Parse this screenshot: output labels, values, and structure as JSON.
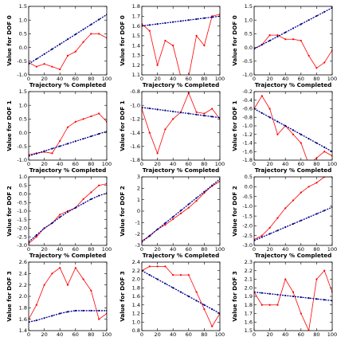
{
  "colors": {
    "series_red": "#ff0000",
    "series_blue": "#00008b",
    "axes": "#000000",
    "background": "#ffffff"
  },
  "chart_data": [
    {
      "type": "line",
      "xlabel": "Trajectory % Completed",
      "ylabel": "Value for DOF 0",
      "xlim": [
        0,
        100
      ],
      "ylim": [
        -1.0,
        1.5
      ],
      "xticks": [
        0,
        20,
        40,
        60,
        80,
        100
      ],
      "yticks": [
        -1.0,
        -0.5,
        0.0,
        0.5,
        1.0,
        1.5
      ],
      "grid": false,
      "series": [
        {
          "color": "#ff0000",
          "style": "solid",
          "markers": "dot",
          "x": [
            0,
            10,
            20,
            30,
            40,
            50,
            60,
            70,
            80,
            90,
            100
          ],
          "y": [
            -0.55,
            -0.7,
            -0.6,
            -0.7,
            -0.8,
            -0.3,
            -0.15,
            0.2,
            0.5,
            0.5,
            0.35
          ]
        },
        {
          "color": "#00008b",
          "style": "dashed",
          "markers": "dot",
          "x": [
            0,
            10,
            20,
            30,
            40,
            50,
            60,
            70,
            80,
            90,
            100
          ],
          "y": [
            -0.6,
            -0.42,
            -0.24,
            -0.06,
            0.12,
            0.3,
            0.48,
            0.66,
            0.84,
            1.02,
            1.2
          ]
        }
      ]
    },
    {
      "type": "line",
      "xlabel": "Trajectory % Completed",
      "ylabel": "Value for DOF 0",
      "xlim": [
        0,
        100
      ],
      "ylim": [
        1.1,
        1.8
      ],
      "xticks": [
        0,
        20,
        40,
        60,
        80,
        100
      ],
      "yticks": [
        1.1,
        1.2,
        1.3,
        1.4,
        1.5,
        1.6,
        1.7,
        1.8
      ],
      "grid": false,
      "series": [
        {
          "color": "#ff0000",
          "style": "solid",
          "markers": "dot",
          "x": [
            0,
            10,
            20,
            30,
            40,
            50,
            60,
            70,
            80,
            90,
            100
          ],
          "y": [
            1.62,
            1.55,
            1.2,
            1.45,
            1.4,
            1.08,
            1.08,
            1.5,
            1.4,
            1.7,
            1.72
          ]
        },
        {
          "color": "#00008b",
          "style": "dashed",
          "markers": "dot",
          "x": [
            0,
            10,
            20,
            30,
            40,
            50,
            60,
            70,
            80,
            90,
            100
          ],
          "y": [
            1.6,
            1.61,
            1.62,
            1.63,
            1.64,
            1.65,
            1.66,
            1.67,
            1.68,
            1.69,
            1.7
          ]
        }
      ]
    },
    {
      "type": "line",
      "xlabel": "Trajectory % Completed",
      "ylabel": "Value for DOF 0",
      "xlim": [
        0,
        100
      ],
      "ylim": [
        -1.0,
        1.5
      ],
      "xticks": [
        0,
        20,
        40,
        60,
        80,
        100
      ],
      "yticks": [
        -1.0,
        -0.5,
        0.0,
        0.5,
        1.0,
        1.5
      ],
      "grid": false,
      "series": [
        {
          "color": "#ff0000",
          "style": "solid",
          "markers": "dot",
          "x": [
            0,
            10,
            20,
            30,
            40,
            50,
            60,
            70,
            80,
            90,
            100
          ],
          "y": [
            -0.05,
            0.1,
            0.45,
            0.45,
            0.3,
            0.3,
            0.25,
            -0.3,
            -0.75,
            -0.55,
            -0.1
          ]
        },
        {
          "color": "#00008b",
          "style": "dashed",
          "markers": "dot",
          "x": [
            0,
            10,
            20,
            30,
            40,
            50,
            60,
            70,
            80,
            90,
            100
          ],
          "y": [
            -0.05,
            0.1,
            0.25,
            0.4,
            0.55,
            0.7,
            0.85,
            1.0,
            1.15,
            1.3,
            1.45
          ]
        }
      ]
    },
    {
      "type": "line",
      "xlabel": "Trajectory % Completed",
      "ylabel": "Value for DOF 1",
      "xlim": [
        0,
        100
      ],
      "ylim": [
        -1.0,
        1.5
      ],
      "xticks": [
        0,
        20,
        40,
        60,
        80,
        100
      ],
      "yticks": [
        -1.0,
        -0.5,
        0.0,
        0.5,
        1.0,
        1.5
      ],
      "grid": false,
      "series": [
        {
          "color": "#ff0000",
          "style": "solid",
          "markers": "dot",
          "x": [
            0,
            10,
            20,
            30,
            40,
            50,
            60,
            70,
            80,
            90,
            100
          ],
          "y": [
            -0.8,
            -0.75,
            -0.7,
            -0.75,
            -0.3,
            0.2,
            0.4,
            0.5,
            0.6,
            0.7,
            0.4
          ]
        },
        {
          "color": "#00008b",
          "style": "dashed",
          "markers": "dot",
          "x": [
            0,
            10,
            20,
            30,
            40,
            50,
            60,
            70,
            80,
            90,
            100
          ],
          "y": [
            -0.85,
            -0.76,
            -0.67,
            -0.58,
            -0.49,
            -0.4,
            -0.31,
            -0.22,
            -0.13,
            -0.04,
            0.05
          ]
        }
      ]
    },
    {
      "type": "line",
      "xlabel": "Trajectory % Completed",
      "ylabel": "Value for DOF 1",
      "xlim": [
        0,
        100
      ],
      "ylim": [
        -1.8,
        -0.8
      ],
      "xticks": [
        0,
        20,
        40,
        60,
        80,
        100
      ],
      "yticks": [
        -1.8,
        -1.6,
        -1.4,
        -1.2,
        -1.0,
        -0.8
      ],
      "grid": false,
      "series": [
        {
          "color": "#ff0000",
          "style": "solid",
          "markers": "dot",
          "x": [
            0,
            10,
            20,
            30,
            40,
            50,
            60,
            70,
            80,
            90,
            100
          ],
          "y": [
            -1.05,
            -1.4,
            -1.7,
            -1.35,
            -1.2,
            -1.1,
            -0.82,
            -1.1,
            -1.12,
            -1.05,
            -1.2
          ]
        },
        {
          "color": "#00008b",
          "style": "dashed",
          "markers": "dot",
          "x": [
            0,
            10,
            20,
            30,
            40,
            50,
            60,
            70,
            80,
            90,
            100
          ],
          "y": [
            -1.03,
            -1.045,
            -1.06,
            -1.075,
            -1.09,
            -1.105,
            -1.12,
            -1.135,
            -1.15,
            -1.165,
            -1.18
          ]
        }
      ]
    },
    {
      "type": "line",
      "xlabel": "Trajectory % Completed",
      "ylabel": "Value for DOF 1",
      "xlim": [
        0,
        100
      ],
      "ylim": [
        -1.8,
        -0.2
      ],
      "xticks": [
        0,
        20,
        40,
        60,
        80,
        100
      ],
      "yticks": [
        -1.8,
        -1.6,
        -1.4,
        -1.2,
        -1.0,
        -0.8,
        -0.6,
        -0.4,
        -0.2
      ],
      "grid": false,
      "series": [
        {
          "color": "#ff0000",
          "style": "solid",
          "markers": "dot",
          "x": [
            0,
            10,
            20,
            30,
            40,
            50,
            60,
            70,
            80,
            90,
            100
          ],
          "y": [
            -0.6,
            -0.3,
            -0.6,
            -1.2,
            -1.0,
            -1.2,
            -1.4,
            -1.9,
            -1.75,
            -1.6,
            -1.7
          ]
        },
        {
          "color": "#00008b",
          "style": "dashed",
          "markers": "dot",
          "x": [
            0,
            10,
            20,
            30,
            40,
            50,
            60,
            70,
            80,
            90,
            100
          ],
          "y": [
            -0.6,
            -0.7,
            -0.8,
            -0.9,
            -1.0,
            -1.1,
            -1.2,
            -1.3,
            -1.4,
            -1.5,
            -1.6
          ]
        }
      ]
    },
    {
      "type": "line",
      "xlabel": "Trajectory % Completed",
      "ylabel": "Value for DOF 2",
      "xlim": [
        0,
        100
      ],
      "ylim": [
        -3.0,
        1.0
      ],
      "xticks": [
        0,
        20,
        40,
        60,
        80,
        100
      ],
      "yticks": [
        -3.0,
        -2.5,
        -2.0,
        -1.5,
        -1.0,
        -0.5,
        0.0,
        0.5,
        1.0
      ],
      "grid": false,
      "series": [
        {
          "color": "#ff0000",
          "style": "solid",
          "markers": "dot",
          "x": [
            0,
            10,
            20,
            30,
            40,
            50,
            60,
            70,
            80,
            90,
            100
          ],
          "y": [
            -2.9,
            -2.5,
            -2.0,
            -1.7,
            -1.2,
            -1.0,
            -0.8,
            -0.3,
            0.1,
            0.5,
            0.6
          ]
        },
        {
          "color": "#00008b",
          "style": "dashed",
          "markers": "dot",
          "x": [
            0,
            10,
            20,
            30,
            40,
            50,
            60,
            70,
            80,
            90,
            100
          ],
          "y": [
            -2.8,
            -2.4,
            -2.0,
            -1.7,
            -1.35,
            -1.05,
            -0.8,
            -0.55,
            -0.3,
            -0.1,
            0.05
          ]
        }
      ]
    },
    {
      "type": "line",
      "xlabel": "Trajectory % Completed",
      "ylabel": "Value for DOF 2",
      "xlim": [
        0,
        100
      ],
      "ylim": [
        -3,
        3
      ],
      "xticks": [
        0,
        20,
        40,
        60,
        80,
        100
      ],
      "yticks": [
        -3,
        -2,
        -1,
        0,
        1,
        2,
        3
      ],
      "grid": false,
      "series": [
        {
          "color": "#ff0000",
          "style": "solid",
          "markers": "dot",
          "x": [
            0,
            10,
            20,
            30,
            40,
            50,
            60,
            70,
            80,
            90,
            100
          ],
          "y": [
            -2.6,
            -2.2,
            -1.6,
            -1.2,
            -0.7,
            -0.2,
            0.3,
            0.9,
            1.6,
            2.2,
            2.6
          ]
        },
        {
          "color": "#00008b",
          "style": "dashed",
          "markers": "dot",
          "x": [
            0,
            10,
            20,
            30,
            40,
            50,
            60,
            70,
            80,
            90,
            100
          ],
          "y": [
            -2.7,
            -2.15,
            -1.6,
            -1.05,
            -0.5,
            0.05,
            0.6,
            1.15,
            1.7,
            2.25,
            2.8
          ]
        }
      ]
    },
    {
      "type": "line",
      "xlabel": "Trajectory % Completed",
      "ylabel": "Value for DOF 2",
      "xlim": [
        0,
        100
      ],
      "ylim": [
        -3.0,
        0.5
      ],
      "xticks": [
        0,
        20,
        40,
        60,
        80,
        100
      ],
      "yticks": [
        -3.0,
        -2.5,
        -2.0,
        -1.5,
        -1.0,
        -0.5,
        0.0,
        0.5
      ],
      "grid": false,
      "series": [
        {
          "color": "#ff0000",
          "style": "solid",
          "markers": "dot",
          "x": [
            0,
            10,
            20,
            30,
            40,
            50,
            60,
            70,
            80,
            90,
            100
          ],
          "y": [
            -2.7,
            -2.5,
            -2.1,
            -1.6,
            -1.1,
            -0.7,
            -0.3,
            0.0,
            0.2,
            0.5,
            0.5
          ]
        },
        {
          "color": "#00008b",
          "style": "dashed",
          "markers": "dot",
          "x": [
            0,
            10,
            20,
            30,
            40,
            50,
            60,
            70,
            80,
            90,
            100
          ],
          "y": [
            -2.75,
            -2.58,
            -2.41,
            -2.24,
            -2.07,
            -1.9,
            -1.73,
            -1.56,
            -1.39,
            -1.22,
            -1.05
          ]
        }
      ]
    },
    {
      "type": "line",
      "xlabel": "Trajectory % Completed",
      "ylabel": "Value for DOF 3",
      "xlim": [
        0,
        100
      ],
      "ylim": [
        1.4,
        2.6
      ],
      "xticks": [
        0,
        20,
        40,
        60,
        80,
        100
      ],
      "yticks": [
        1.4,
        1.6,
        1.8,
        2.0,
        2.2,
        2.4,
        2.6
      ],
      "grid": false,
      "series": [
        {
          "color": "#ff0000",
          "style": "solid",
          "markers": "dot",
          "x": [
            0,
            10,
            20,
            30,
            40,
            50,
            60,
            70,
            80,
            90,
            100
          ],
          "y": [
            1.6,
            1.85,
            2.2,
            2.4,
            2.5,
            2.2,
            2.5,
            2.3,
            2.1,
            1.6,
            1.7
          ]
        },
        {
          "color": "#00008b",
          "style": "dashed",
          "markers": "dot",
          "x": [
            0,
            10,
            20,
            30,
            40,
            50,
            60,
            70,
            80,
            90,
            100
          ],
          "y": [
            1.55,
            1.58,
            1.62,
            1.66,
            1.7,
            1.73,
            1.75,
            1.75,
            1.75,
            1.75,
            1.75
          ]
        }
      ]
    },
    {
      "type": "line",
      "xlabel": "Trajectory % Completed",
      "ylabel": "Value for DOF 3",
      "xlim": [
        0,
        100
      ],
      "ylim": [
        0.8,
        2.4
      ],
      "xticks": [
        0,
        20,
        40,
        60,
        80,
        100
      ],
      "yticks": [
        0.8,
        1.0,
        1.2,
        1.4,
        1.6,
        1.8,
        2.0,
        2.2,
        2.4
      ],
      "grid": false,
      "series": [
        {
          "color": "#ff0000",
          "style": "solid",
          "markers": "dot",
          "x": [
            0,
            10,
            20,
            30,
            40,
            50,
            60,
            70,
            80,
            90,
            100
          ],
          "y": [
            2.2,
            2.3,
            2.3,
            2.3,
            2.1,
            2.1,
            2.1,
            1.7,
            1.3,
            0.9,
            1.2
          ]
        },
        {
          "color": "#00008b",
          "style": "dashed",
          "markers": "dot",
          "x": [
            0,
            10,
            20,
            30,
            40,
            50,
            60,
            70,
            80,
            90,
            100
          ],
          "y": [
            2.2,
            2.1,
            2.0,
            1.9,
            1.8,
            1.7,
            1.6,
            1.5,
            1.4,
            1.3,
            1.2
          ]
        }
      ]
    },
    {
      "type": "line",
      "xlabel": "Trajectory % Completed",
      "ylabel": "Value for DOF 3",
      "xlim": [
        0,
        100
      ],
      "ylim": [
        1.5,
        2.3
      ],
      "xticks": [
        0,
        20,
        40,
        60,
        80,
        100
      ],
      "yticks": [
        1.5,
        1.6,
        1.7,
        1.8,
        1.9,
        2.0,
        2.1,
        2.2,
        2.3
      ],
      "grid": false,
      "series": [
        {
          "color": "#ff0000",
          "style": "solid",
          "markers": "dot",
          "x": [
            0,
            10,
            20,
            30,
            40,
            50,
            60,
            70,
            80,
            90,
            100
          ],
          "y": [
            1.95,
            1.8,
            1.8,
            1.8,
            2.1,
            1.95,
            1.7,
            1.5,
            2.1,
            2.2,
            1.95
          ]
        },
        {
          "color": "#00008b",
          "style": "dashed",
          "markers": "dot",
          "x": [
            0,
            10,
            20,
            30,
            40,
            50,
            60,
            70,
            80,
            90,
            100
          ],
          "y": [
            1.95,
            1.94,
            1.93,
            1.92,
            1.91,
            1.9,
            1.89,
            1.88,
            1.87,
            1.86,
            1.85
          ]
        }
      ]
    }
  ]
}
